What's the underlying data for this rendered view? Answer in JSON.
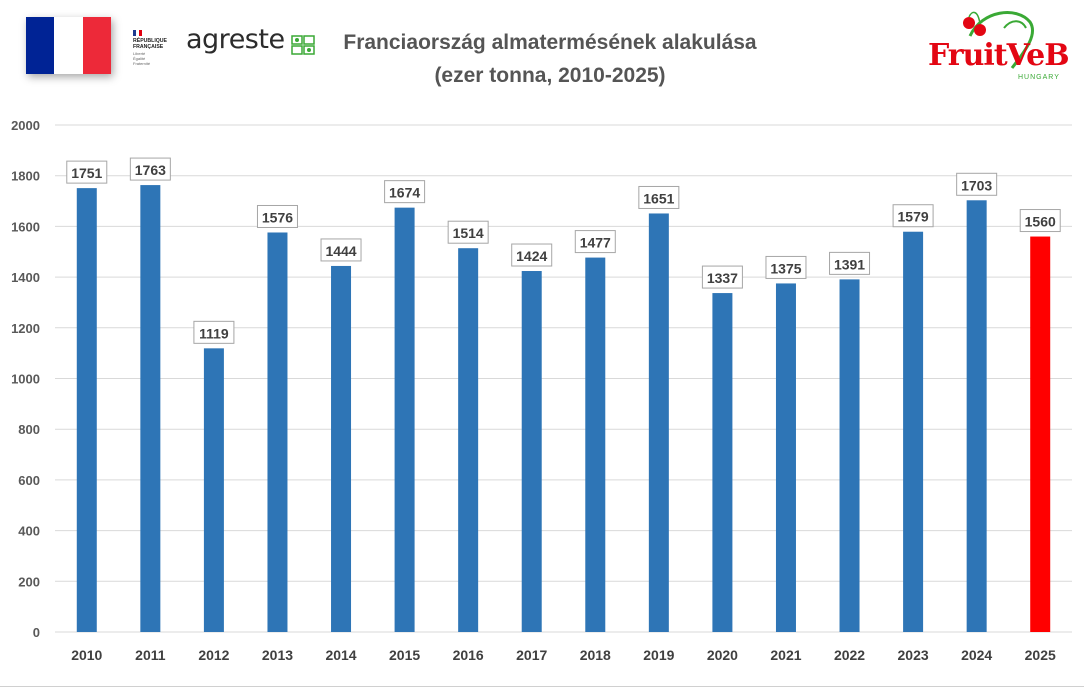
{
  "header": {
    "title_line1": "Franciaország almatermésének alakulása",
    "title_line2": "(ezer tonna, 2010-2025)",
    "logos": {
      "flag": "france-flag",
      "republique": [
        "RÉPUBLIQUE",
        "FRANÇAISE"
      ],
      "republique_motto": [
        "Liberté",
        "Égalité",
        "Fraternité"
      ],
      "agreste": "agreste",
      "fruitveb": "FruitVeB",
      "fruitveb_sub": "HUNGARY"
    }
  },
  "colors": {
    "bar": "#2e75b6",
    "highlight": "#ff0000",
    "grid": "#d9d9d9",
    "axis_text": "#595959",
    "label_text": "#404040",
    "flag_blue": "#002395",
    "flag_white": "#ffffff",
    "flag_red": "#ed2939"
  },
  "chart_data": {
    "type": "bar",
    "title": "Franciaország almatermésének alakulása (ezer tonna, 2010-2025)",
    "xlabel": "",
    "ylabel": "",
    "categories": [
      "2010",
      "2011",
      "2012",
      "2013",
      "2014",
      "2015",
      "2016",
      "2017",
      "2018",
      "2019",
      "2020",
      "2021",
      "2022",
      "2023",
      "2024",
      "2025"
    ],
    "values": [
      1751,
      1763,
      1119,
      1576,
      1444,
      1674,
      1514,
      1424,
      1477,
      1651,
      1337,
      1375,
      1391,
      1579,
      1703,
      1560
    ],
    "highlight_category": "2025",
    "ylim": [
      0,
      2000
    ],
    "yticks": [
      0,
      200,
      400,
      600,
      800,
      1000,
      1200,
      1400,
      1600,
      1800,
      2000
    ],
    "grid": true,
    "data_labels": true,
    "legend": "none"
  }
}
